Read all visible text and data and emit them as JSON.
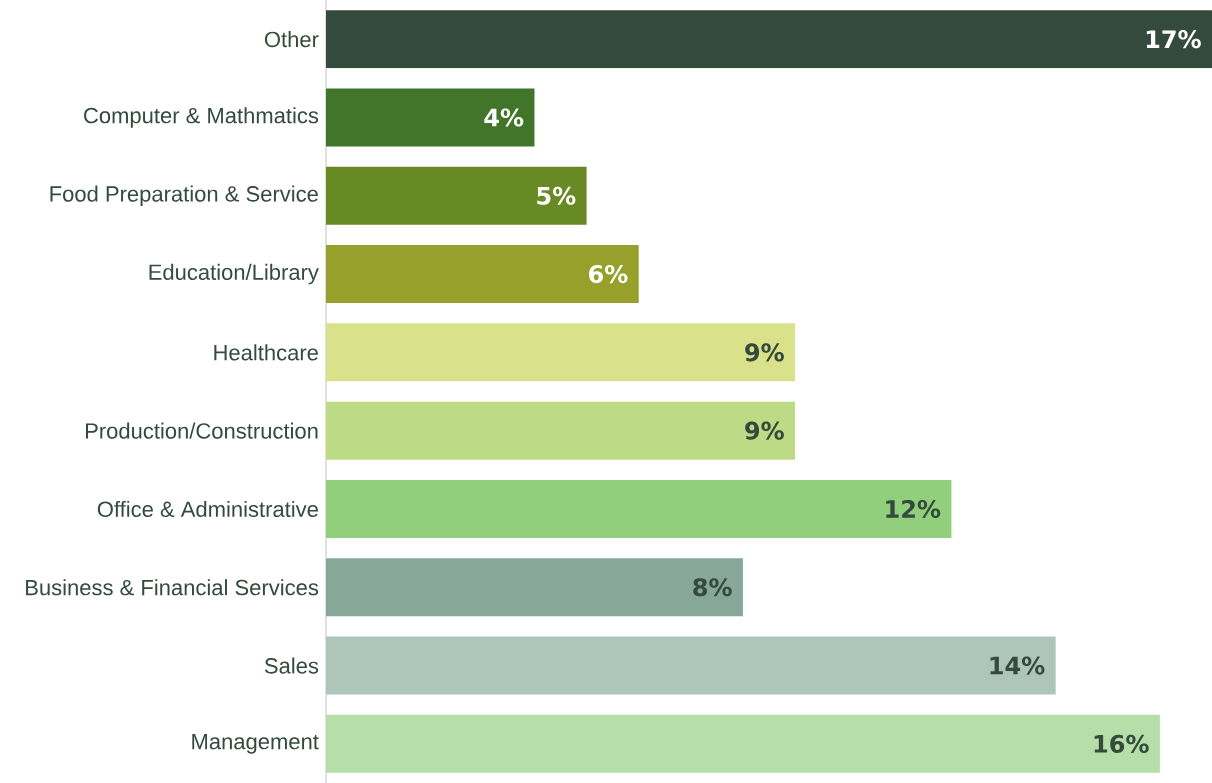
{
  "chart_data": {
    "type": "bar",
    "orientation": "horizontal",
    "categories": [
      "Other",
      "Computer & Mathmatics",
      "Food Preparation & Service",
      "Education/Library",
      "Healthcare",
      "Production/Construction",
      "Office & Administrative",
      "Business & Financial Services",
      "Sales",
      "Management"
    ],
    "values": [
      17,
      4,
      5,
      6,
      9,
      9,
      12,
      8,
      14,
      16
    ],
    "value_labels": [
      "17%",
      "4%",
      "5%",
      "6%",
      "9%",
      "9%",
      "12%",
      "8%",
      "14%",
      "16%"
    ],
    "colors": [
      "#344a3c",
      "#40752a",
      "#678a25",
      "#97a02a",
      "#d9e18a",
      "#bddb84",
      "#92cf7c",
      "#87a898",
      "#aec6b9",
      "#b5dea8"
    ],
    "xlim": [
      0,
      17
    ]
  }
}
